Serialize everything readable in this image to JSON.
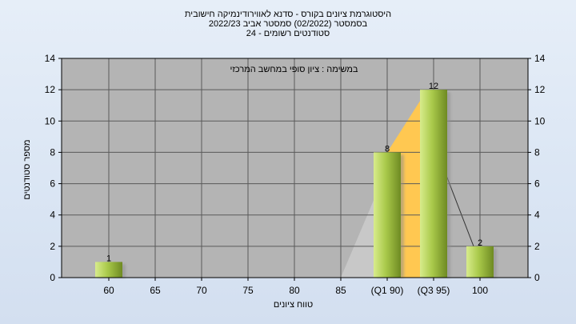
{
  "header": {
    "title_line1": "היסטוגרמת ציונים בקורס - סדנא לאווירודינמיקה חישובית",
    "title_line2": "בסמסטר  (02/2022)  סמסטר אביב 2022/23",
    "title_line3": "סטודנטים רשומים - 24"
  },
  "chart_data": {
    "type": "bar",
    "title": "במשימה : ציון סופי במחשב המרכזי",
    "xlabel": "טווח ציונים",
    "ylabel": "מספר סטודנטים",
    "categories": [
      "60",
      "65",
      "70",
      "75",
      "80",
      "85",
      "(Q1 90)",
      "(Q3 95)",
      "100"
    ],
    "values": [
      1,
      0,
      0,
      0,
      0,
      0,
      8,
      12,
      2
    ],
    "data_labels": [
      "1",
      "",
      "",
      "",
      "",
      "",
      "8",
      "12",
      "2"
    ],
    "ylim": [
      0,
      14
    ],
    "yticks": [
      0,
      2,
      4,
      6,
      8,
      10,
      12,
      14
    ],
    "grid": true,
    "quartile_band": [
      "(Q1 90)",
      "(Q3 95)"
    ],
    "colors": {
      "plot_background": "#b4b4b4",
      "bar_light": "#d8ec8c",
      "bar_dark": "#6e8a22",
      "bar_shadow": "#8f8f8f",
      "quartile_band": "#ffc851",
      "distribution_area": "#c8c8c8",
      "gridline": "#5a5a5a"
    }
  }
}
